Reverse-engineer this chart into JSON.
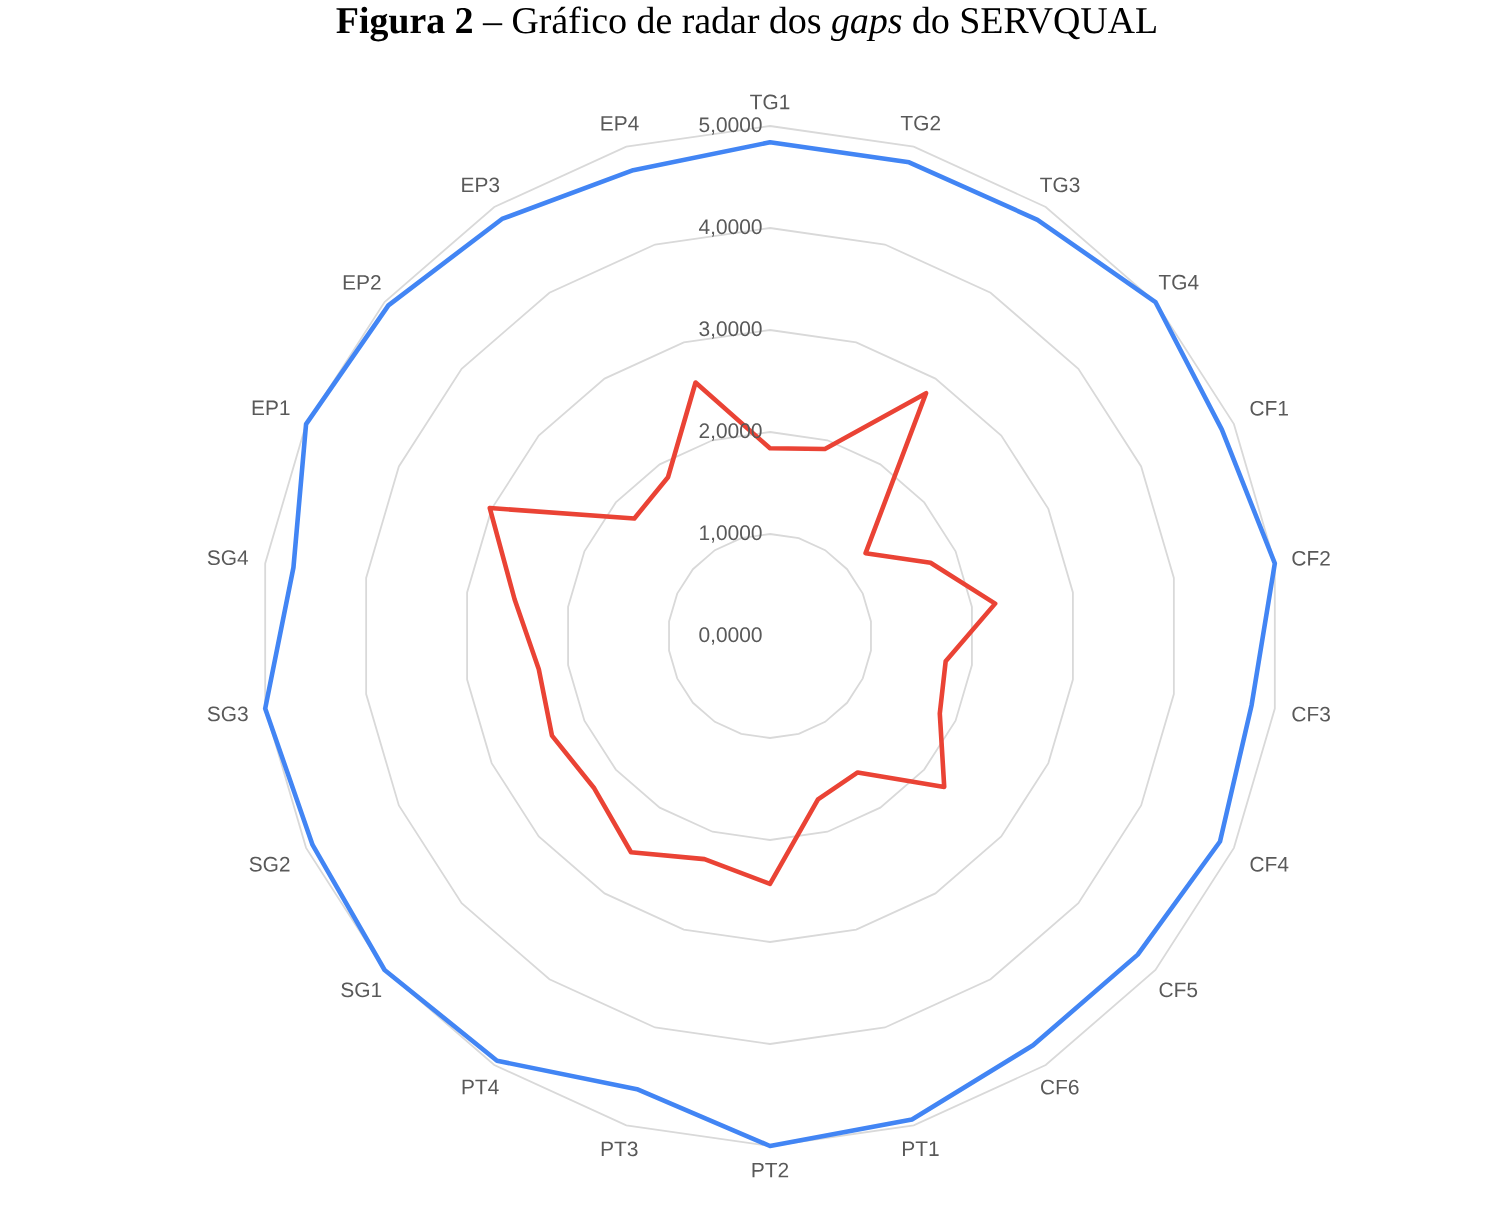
{
  "chart_data": {
    "type": "radar",
    "title": "**Figura 2** – Gráfico de radar dos *gaps* do SERVQUAL",
    "categories": [
      "TG1",
      "TG2",
      "TG3",
      "TG4",
      "CF1",
      "CF2",
      "CF3",
      "CF4",
      "CF5",
      "CF6",
      "PT1",
      "PT2",
      "PT3",
      "PT4",
      "SG1",
      "SG2",
      "SG3",
      "SG4",
      "EP1",
      "EP2",
      "EP3",
      "EP4"
    ],
    "series": [
      {
        "color": "#4285f4",
        "values": [
          4.84,
          4.84,
          4.85,
          5.0,
          4.87,
          5.0,
          4.77,
          4.85,
          4.77,
          4.77,
          4.94,
          5.0,
          4.63,
          4.95,
          5.0,
          4.93,
          5.0,
          4.72,
          5.0,
          4.95,
          4.86,
          4.76
        ]
      },
      {
        "color": "#ea4335",
        "values": [
          1.84,
          1.91,
          2.83,
          1.24,
          1.73,
          2.23,
          1.74,
          1.83,
          2.26,
          1.59,
          1.67,
          2.43,
          2.28,
          2.52,
          2.28,
          2.35,
          2.29,
          2.53,
          3.02,
          1.76,
          1.85,
          2.59
        ]
      }
    ],
    "ylim": [
      0,
      5
    ],
    "yticks": [
      {
        "value": 0,
        "label": "0,0000"
      },
      {
        "value": 1,
        "label": "1,0000"
      },
      {
        "value": 2,
        "label": "2,0000"
      },
      {
        "value": 3,
        "label": "3,0000"
      },
      {
        "value": 4,
        "label": "4,0000"
      },
      {
        "value": 5,
        "label": "5,0000"
      }
    ],
    "grid": true
  }
}
